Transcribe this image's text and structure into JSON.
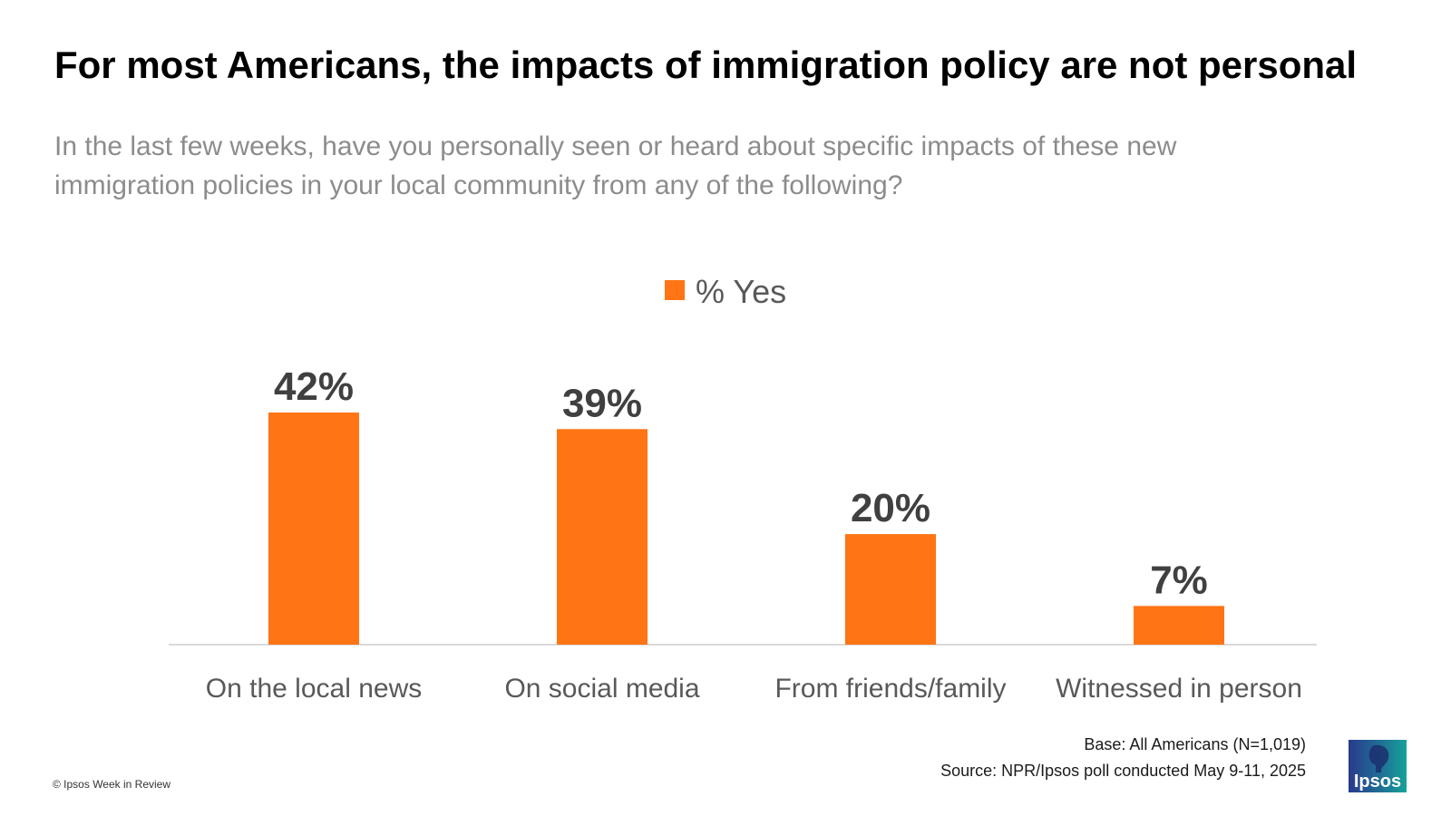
{
  "header": {
    "title": "For most Americans, the impacts of immigration policy are not personal",
    "subtitle": "In the last few weeks, have you personally seen or heard about specific impacts of these new immigration policies in your local community from any of the following?"
  },
  "chart_data": {
    "type": "bar",
    "categories": [
      "On the local news",
      "On social media",
      "From friends/family",
      "Witnessed in person"
    ],
    "series": [
      {
        "name": "% Yes",
        "values": [
          42,
          39,
          20,
          7
        ],
        "labels": [
          "42%",
          "39%",
          "20%",
          "7%"
        ],
        "color": "#ff7414"
      }
    ],
    "legend_position": "top-center",
    "grid": false,
    "ylim": [
      0,
      42
    ]
  },
  "footer": {
    "base": "Base: All Americans (N=1,019)",
    "source": "Source: NPR/Ipsos poll conducted May 9-11, 2025",
    "copyright": "© Ipsos Week in Review"
  },
  "logo": {
    "text": "Ipsos",
    "icon": "ipsos-logo-icon",
    "colors": [
      "#2a3a8c",
      "#15a29a"
    ]
  },
  "colors": {
    "bar": "#ff7414",
    "value_label": "#404040",
    "category_label": "#595959",
    "axis_line": "#d9d9d9"
  }
}
